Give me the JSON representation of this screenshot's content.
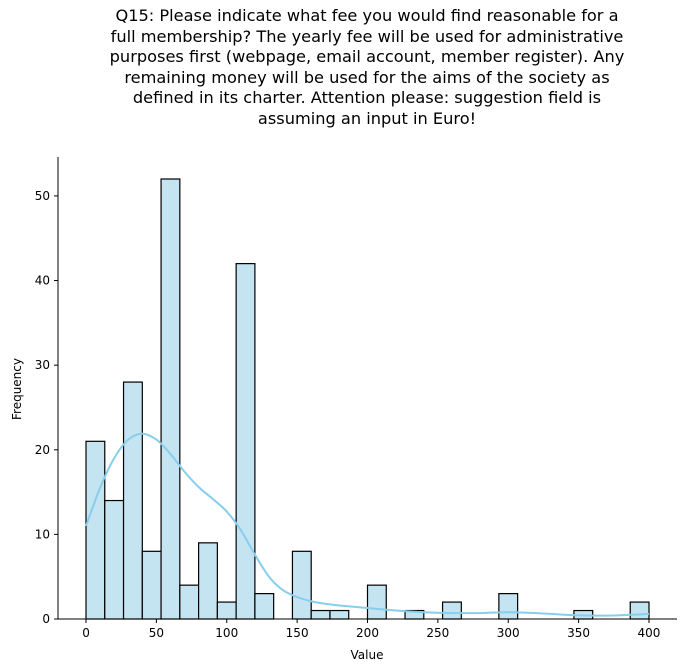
{
  "chart_data": {
    "type": "bar",
    "title_lines": [
      "Q15: Please indicate what fee you would find reasonable for a",
      "full membership? The yearly fee will be used for administrative",
      "purposes first (webpage, email account, member register). Any",
      "remaining money will be used for the aims of the society as",
      "defined in its charter.  Attention please: suggestion field is",
      "assuming an input in Euro!"
    ],
    "xlabel": "Value",
    "ylabel": "Frequency",
    "xlim": [
      -19.9,
      419.9
    ],
    "ylim": [
      0,
      54.6
    ],
    "xticks": [
      0,
      50,
      100,
      150,
      200,
      250,
      300,
      350,
      400
    ],
    "yticks": [
      0,
      10,
      20,
      30,
      40,
      50
    ],
    "bin_width": 13.333,
    "bins": [
      {
        "x": 0.0,
        "count": 21
      },
      {
        "x": 13.333,
        "count": 14
      },
      {
        "x": 26.667,
        "count": 28
      },
      {
        "x": 40.0,
        "count": 8
      },
      {
        "x": 53.333,
        "count": 52
      },
      {
        "x": 66.667,
        "count": 4
      },
      {
        "x": 80.0,
        "count": 9
      },
      {
        "x": 93.333,
        "count": 2
      },
      {
        "x": 106.667,
        "count": 42
      },
      {
        "x": 120.0,
        "count": 3
      },
      {
        "x": 133.333,
        "count": 0
      },
      {
        "x": 146.667,
        "count": 8
      },
      {
        "x": 160.0,
        "count": 1
      },
      {
        "x": 173.333,
        "count": 1
      },
      {
        "x": 186.667,
        "count": 0
      },
      {
        "x": 200.0,
        "count": 4
      },
      {
        "x": 213.333,
        "count": 0
      },
      {
        "x": 226.667,
        "count": 1
      },
      {
        "x": 240.0,
        "count": 0
      },
      {
        "x": 253.333,
        "count": 2
      },
      {
        "x": 266.667,
        "count": 0
      },
      {
        "x": 280.0,
        "count": 0
      },
      {
        "x": 293.333,
        "count": 3
      },
      {
        "x": 306.667,
        "count": 0
      },
      {
        "x": 320.0,
        "count": 0
      },
      {
        "x": 333.333,
        "count": 0
      },
      {
        "x": 346.667,
        "count": 1
      },
      {
        "x": 360.0,
        "count": 0
      },
      {
        "x": 373.333,
        "count": 0
      },
      {
        "x": 386.667,
        "count": 2
      }
    ],
    "kde": {
      "x": [
        0,
        10,
        20,
        30,
        40,
        50,
        60,
        70,
        80,
        90,
        100,
        110,
        120,
        130,
        140,
        150,
        160,
        170,
        180,
        200,
        220,
        240,
        260,
        280,
        300,
        320,
        340,
        360,
        380,
        400
      ],
      "y": [
        11,
        15.5,
        19,
        21.2,
        21.9,
        21.2,
        19.5,
        17.4,
        15.6,
        14.2,
        12.7,
        10.5,
        7.6,
        5.0,
        3.4,
        2.6,
        2.1,
        1.8,
        1.6,
        1.3,
        1.0,
        0.8,
        0.7,
        0.7,
        0.8,
        0.7,
        0.5,
        0.4,
        0.45,
        0.6
      ]
    },
    "bar_fill": "#c5e4f1",
    "bar_edge": "#000000",
    "kde_color": "#87ceeb",
    "grid": false
  }
}
